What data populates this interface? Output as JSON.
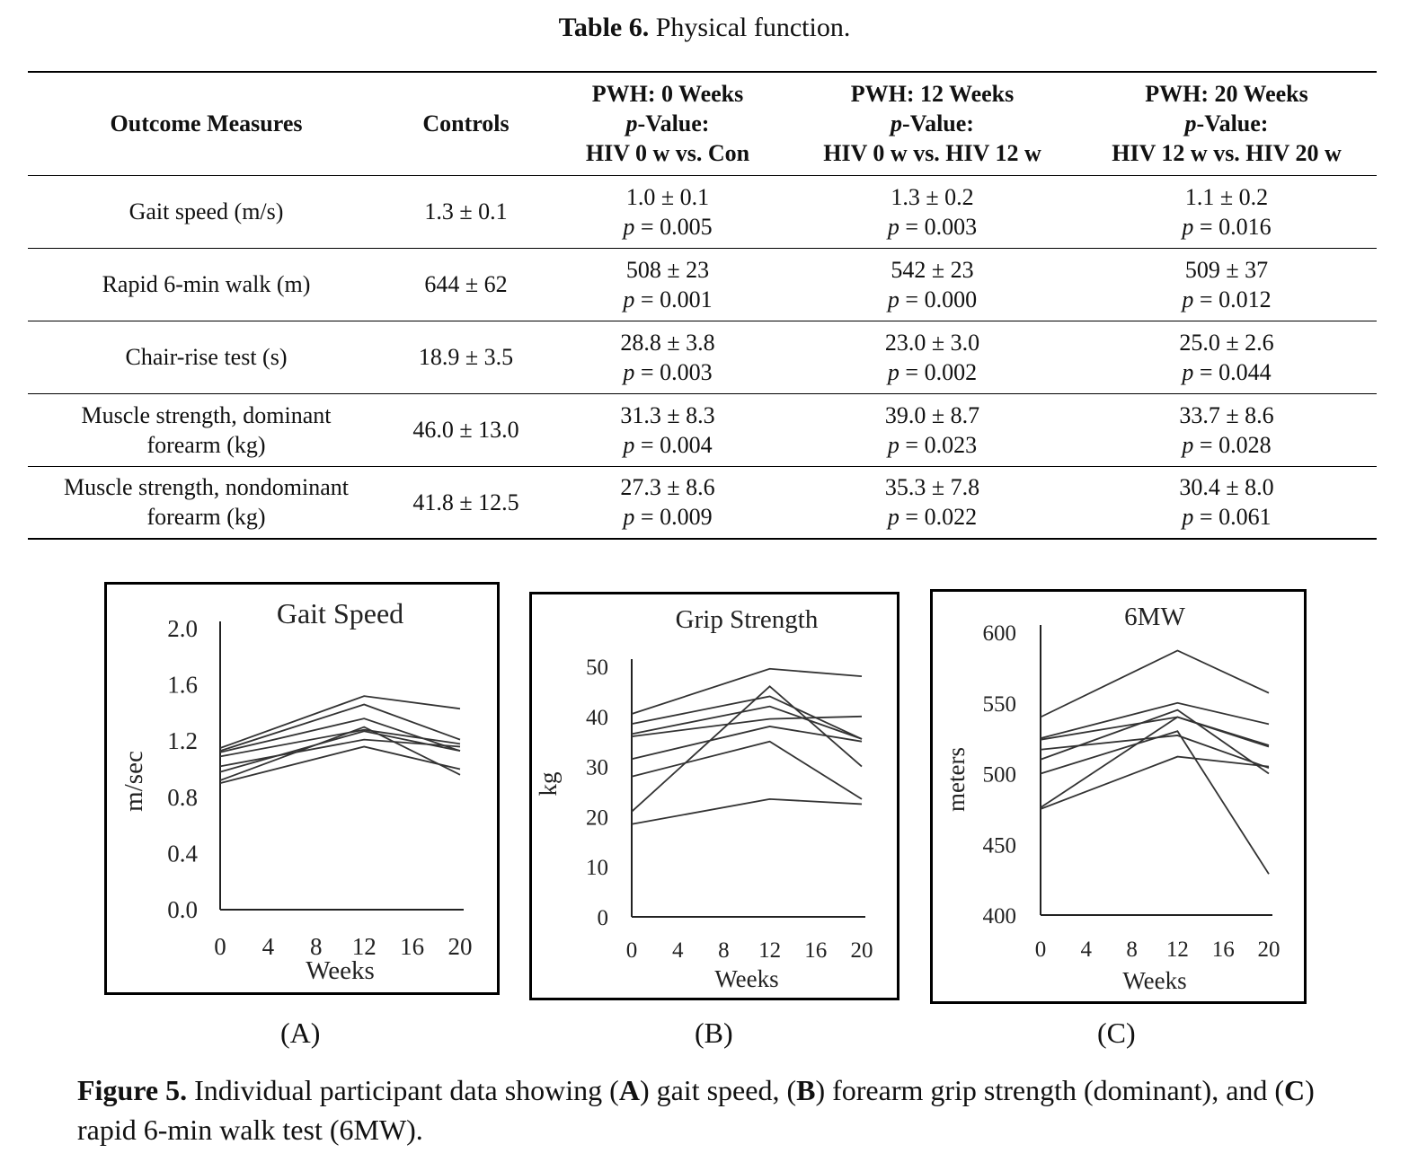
{
  "table": {
    "label": "Table 6.",
    "title": "Physical function.",
    "headers": {
      "outcome": "Outcome Measures",
      "controls": "Controls",
      "pwh0": [
        "PWH: 0 Weeks",
        "p",
        "-Value:",
        "HIV 0 w vs. Con"
      ],
      "pwh12": [
        "PWH: 12 Weeks",
        "p",
        "-Value:",
        "HIV 0 w vs. HIV 12 w"
      ],
      "pwh20": [
        "PWH: 20 Weeks",
        "p",
        "-Value:",
        "HIV 12 w vs. HIV 20 w"
      ]
    },
    "rows": [
      {
        "measure": [
          "Gait speed (m/s)"
        ],
        "controls": "1.3 ± 0.1",
        "w0": "1.0 ± 0.1",
        "p0": "= 0.005",
        "w12": "1.3 ± 0.2",
        "p12": "= 0.003",
        "w20": "1.1 ± 0.2",
        "p20": "= 0.016"
      },
      {
        "measure": [
          "Rapid 6-min walk (m)"
        ],
        "controls": "644 ± 62",
        "w0": "508 ± 23",
        "p0": "= 0.001",
        "w12": "542 ± 23",
        "p12": "= 0.000",
        "w20": "509 ± 37",
        "p20": "= 0.012"
      },
      {
        "measure": [
          "Chair-rise test (s)"
        ],
        "controls": "18.9 ± 3.5",
        "w0": "28.8 ± 3.8",
        "p0": "= 0.003",
        "w12": "23.0 ± 3.0",
        "p12": "= 0.002",
        "w20": "25.0 ± 2.6",
        "p20": "= 0.044"
      },
      {
        "measure": [
          "Muscle strength, dominant",
          "forearm (kg)"
        ],
        "controls": "46.0 ± 13.0",
        "w0": "31.3 ± 8.3",
        "p0": "= 0.004",
        "w12": "39.0 ± 8.7",
        "p12": "= 0.023",
        "w20": "33.7 ± 8.6",
        "p20": "= 0.028"
      },
      {
        "measure": [
          "Muscle strength, nondominant",
          "forearm (kg)"
        ],
        "controls": "41.8 ± 12.5",
        "w0": "27.3 ± 8.6",
        "p0": "= 0.009",
        "w12": "35.3 ± 7.8",
        "p12": "= 0.022",
        "w20": "30.4 ± 8.0",
        "p20": "= 0.061"
      }
    ],
    "p_symbol": "p"
  },
  "chart_data": [
    {
      "panel": "(A)",
      "type": "line",
      "title": "Gait Speed",
      "xlabel": "Weeks",
      "ylabel": "m/sec",
      "x_ticks": [
        "0",
        "4",
        "8",
        "12",
        "16",
        "20"
      ],
      "y_ticks": [
        "0.0",
        "0.4",
        "0.8",
        "1.2",
        "1.6",
        "2.0"
      ],
      "xlim": [
        0,
        20
      ],
      "ylim": [
        0,
        2.0
      ],
      "x": [
        0,
        12,
        20
      ],
      "series": [
        {
          "values": [
            1.15,
            1.52,
            1.43
          ]
        },
        {
          "values": [
            1.13,
            1.46,
            1.21
          ]
        },
        {
          "values": [
            1.12,
            1.36,
            1.13
          ]
        },
        {
          "values": [
            1.09,
            1.28,
            1.18
          ]
        },
        {
          "values": [
            1.02,
            1.21,
            1.16
          ]
        },
        {
          "values": [
            0.98,
            1.27,
            1.13
          ]
        },
        {
          "values": [
            0.92,
            1.3,
            0.96
          ]
        },
        {
          "values": [
            0.9,
            1.16,
            1.0
          ]
        }
      ]
    },
    {
      "panel": "(B)",
      "type": "line",
      "title": "Grip Strength",
      "xlabel": "Weeks",
      "ylabel": "kg",
      "x_ticks": [
        "0",
        "4",
        "8",
        "12",
        "16",
        "20"
      ],
      "y_ticks": [
        "0",
        "10",
        "20",
        "30",
        "40",
        "50"
      ],
      "xlim": [
        0,
        20
      ],
      "ylim": [
        0,
        50
      ],
      "x": [
        0,
        12,
        20
      ],
      "series": [
        {
          "values": [
            40.5,
            49.5,
            48.0
          ]
        },
        {
          "values": [
            38.5,
            44.0,
            35.5
          ]
        },
        {
          "values": [
            36.5,
            42.0,
            35.5
          ]
        },
        {
          "values": [
            36.0,
            39.5,
            40.0
          ]
        },
        {
          "values": [
            31.5,
            38.0,
            35.0
          ]
        },
        {
          "values": [
            28.0,
            35.0,
            23.5
          ]
        },
        {
          "values": [
            21.0,
            46.0,
            30.0
          ]
        },
        {
          "values": [
            18.5,
            23.5,
            22.5
          ]
        }
      ]
    },
    {
      "panel": "(C)",
      "type": "line",
      "title": "6MW",
      "xlabel": "Weeks",
      "ylabel": "meters",
      "x_ticks": [
        "0",
        "4",
        "8",
        "12",
        "16",
        "20"
      ],
      "y_ticks": [
        "400",
        "450",
        "500",
        "550",
        "600"
      ],
      "xlim": [
        0,
        20
      ],
      "ylim": [
        400,
        600
      ],
      "x": [
        0,
        12,
        20
      ],
      "series": [
        {
          "values": [
            540,
            587,
            557
          ]
        },
        {
          "values": [
            525,
            550,
            535
          ]
        },
        {
          "values": [
            524,
            540,
            519
          ]
        },
        {
          "values": [
            517,
            527,
            504
          ]
        },
        {
          "values": [
            510,
            545,
            500
          ]
        },
        {
          "values": [
            500,
            530,
            429
          ]
        },
        {
          "values": [
            476,
            540,
            520
          ]
        },
        {
          "values": [
            475,
            512,
            505
          ]
        }
      ]
    }
  ],
  "figure": {
    "label": "Figure 5.",
    "caption_parts": [
      " Individual participant data showing (",
      "A",
      ") gait speed, (",
      "B",
      ") forearm grip strength (dominant), and (",
      "C",
      ") rapid 6-min walk test (6MW)."
    ]
  }
}
